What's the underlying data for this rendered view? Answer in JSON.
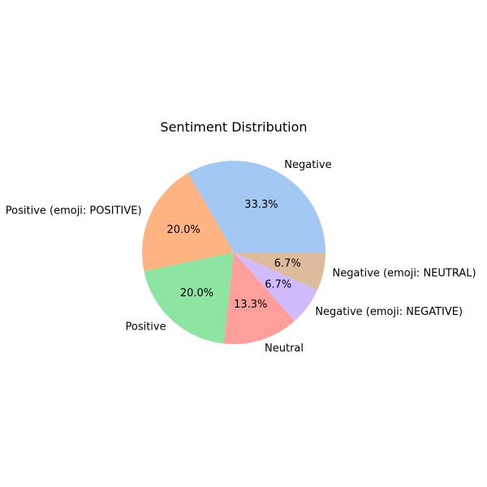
{
  "chart_data": {
    "type": "pie",
    "title": "Sentiment Distribution",
    "categories": [
      "Negative",
      "Positive (emoji: POSITIVE)",
      "Positive",
      "Neutral",
      "Negative (emoji: NEGATIVE)",
      "Negative (emoji: NEUTRAL)"
    ],
    "values": [
      33.3,
      20.0,
      20.0,
      13.3,
      6.7,
      6.7
    ],
    "value_labels": [
      "33.3%",
      "20.0%",
      "20.0%",
      "13.3%",
      "6.7%",
      "6.7%"
    ],
    "colors": [
      "#a1c9f4",
      "#ffb482",
      "#8de5a1",
      "#ff9f9b",
      "#d0bbff",
      "#debb9b"
    ],
    "start_angle_deg": 0,
    "direction": "counterclockwise",
    "legend": "none"
  }
}
